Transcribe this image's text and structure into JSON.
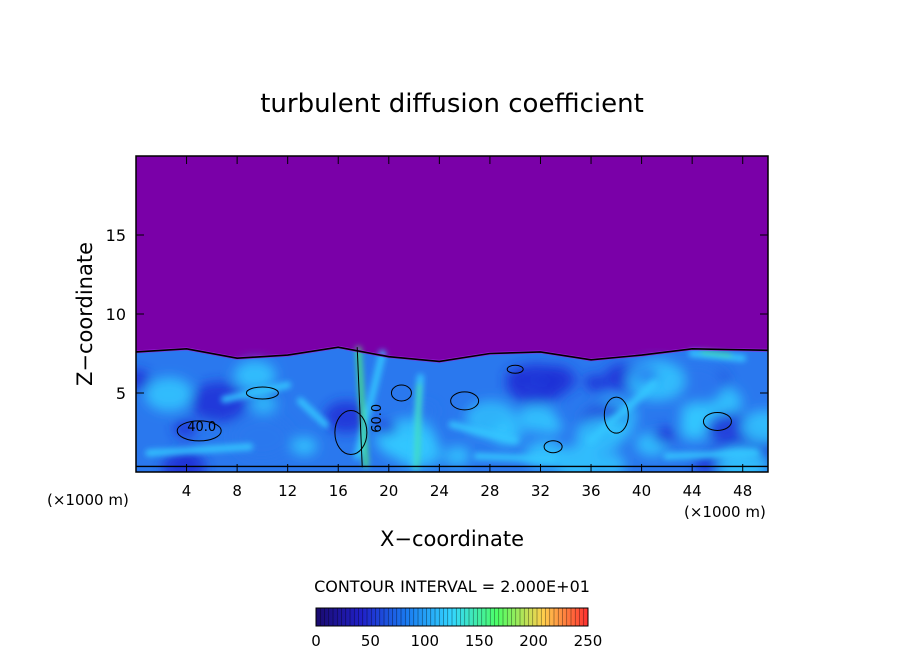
{
  "chart_data": {
    "type": "heatmap",
    "title": "turbulent diffusion coefficient",
    "xlabel": "X−coordinate",
    "ylabel": "Z−coordinate",
    "x_unit_left": "(×1000 m)",
    "x_unit_right": "(×1000 m)",
    "xlim": [
      0,
      50
    ],
    "ylim": [
      0,
      20
    ],
    "x_ticks": [
      4,
      8,
      12,
      16,
      20,
      24,
      28,
      32,
      36,
      40,
      44,
      48
    ],
    "y_ticks": [
      5,
      10,
      15
    ],
    "contour_interval_text": "CONTOUR INTERVAL = 2.000E+01",
    "contour_labels": [
      {
        "text": "40.0",
        "x": 5.2,
        "z": 2.6
      },
      {
        "text": "60.0",
        "x": 19.4,
        "z": 3.4
      }
    ],
    "colorbar": {
      "min": 0,
      "max": 250,
      "ticks": [
        0,
        50,
        100,
        150,
        200,
        250
      ],
      "colors": [
        "#1a0a6e",
        "#2020c8",
        "#1a7af0",
        "#33d6ff",
        "#4dff66",
        "#ffd04d",
        "#ff3030"
      ]
    },
    "field": {
      "background_value": 0,
      "background_color": "#7a00a8",
      "turbulent_layer_top_z": [
        7.6,
        7.8,
        7.2,
        7.4,
        7.9,
        7.3,
        7.0,
        7.5,
        7.6,
        7.1,
        7.4,
        7.8,
        7.7
      ],
      "turbulent_layer_x": [
        0,
        4,
        8,
        12,
        16,
        20,
        24,
        28,
        32,
        36,
        40,
        44,
        50
      ],
      "colors": {
        "deep": "#1e2fd6",
        "mid": "#2a78ee",
        "high": "#33c8ff",
        "peak": "#4cf07a"
      }
    }
  }
}
